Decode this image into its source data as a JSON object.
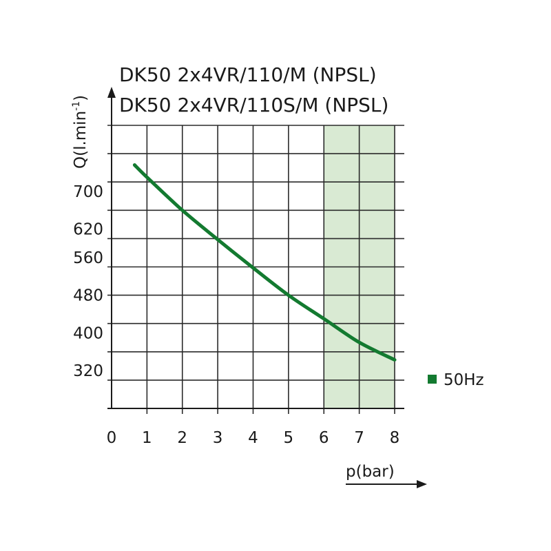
{
  "chart_data": {
    "type": "line",
    "title": [
      "DK50 2x4VR/110/M (NPSL)",
      "DK50 2x4VR/110S/M (NPSL)"
    ],
    "xlabel": "p(bar)",
    "ylabel": {
      "main": "Q(l.min",
      "sup": "-1",
      "close": ")"
    },
    "x_ticks": [
      "0",
      "1",
      "2",
      "3",
      "4",
      "5",
      "6",
      "7",
      "8"
    ],
    "y_ticks": [
      {
        "label": "320",
        "value": 320
      },
      {
        "label": "400",
        "value": 400
      },
      {
        "label": "480",
        "value": 480
      },
      {
        "label": "560",
        "value": 560
      },
      {
        "label": "620",
        "value": 620
      },
      {
        "label": "700",
        "value": 700
      }
    ],
    "xlim": [
      0,
      8
    ],
    "ylim": [
      240,
      840
    ],
    "grid": true,
    "shaded_region": {
      "x_range": [
        6,
        8
      ],
      "color": "#d9ead3"
    },
    "series": [
      {
        "name": "50Hz",
        "color": "#137a30",
        "x": [
          0.65,
          1,
          2,
          3,
          4,
          5,
          6,
          7,
          8
        ],
        "y": [
          756,
          730,
          660,
          598,
          538,
          480,
          430,
          380,
          343
        ]
      }
    ],
    "legend_position": "right"
  }
}
